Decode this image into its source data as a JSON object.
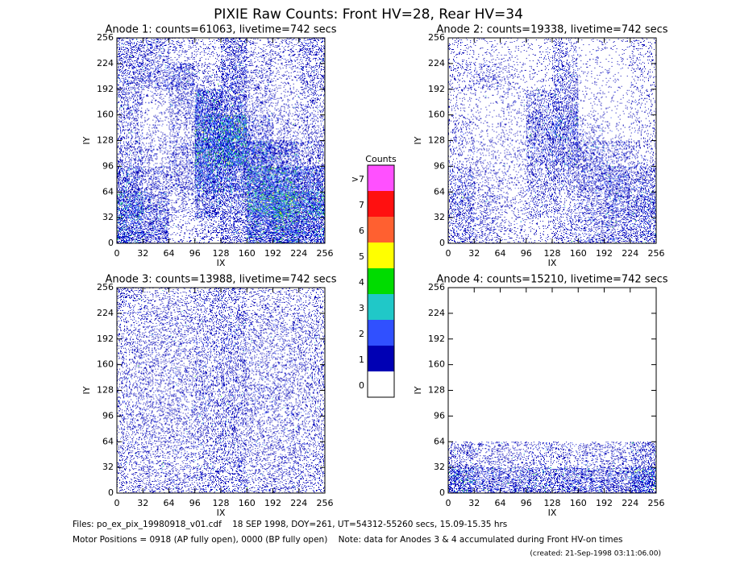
{
  "title": "PIXIE Raw Counts:  Front HV=28, Rear HV=34",
  "colorbar": {
    "title": "Counts",
    "labels": [
      "0",
      "1",
      "2",
      "3",
      "4",
      "5",
      "6",
      "7",
      ">7"
    ],
    "colors": [
      "#ffffff",
      "#0000b4",
      "#3050ff",
      "#20c8c8",
      "#00dc00",
      "#ffff00",
      "#ff6030",
      "#ff1010",
      "#ff50ff"
    ]
  },
  "footer": [
    "Files: po_ex_pix_19980918_v01.cdf    18 SEP 1998, DOY=261, UT=54312-55260 secs, 15.09-15.35 hrs",
    "Motor Positions = 0918 (AP fully open), 0000 (BP fully open)    Note: data for Anodes 3 & 4 accumulated during Front HV-on times",
    "(created: 21-Sep-1998 03:11:06.00)"
  ],
  "chart_data": [
    {
      "type": "heatmap",
      "title": "Anode 1: counts=61063, livetime=742 secs",
      "xlabel": "IX",
      "ylabel": "IY",
      "xlim": [
        0,
        256
      ],
      "ylim": [
        0,
        256
      ],
      "xticks": [
        0,
        32,
        64,
        96,
        128,
        160,
        192,
        224,
        256
      ],
      "yticks": [
        0,
        32,
        64,
        96,
        128,
        160,
        192,
        224,
        256
      ],
      "x_bins": [
        0,
        32,
        64,
        96,
        128,
        160,
        192,
        224,
        256
      ],
      "y_bins": [
        0,
        32,
        64,
        96,
        128,
        160,
        192,
        224,
        256
      ],
      "values": [
        [
          0.8,
          0.5,
          0.1,
          0.2,
          0.4,
          0.9,
          1.3,
          0.9
        ],
        [
          1.0,
          0.5,
          0.2,
          0.6,
          0.5,
          1.5,
          1.8,
          1.3
        ],
        [
          0.6,
          0.3,
          0.3,
          1.0,
          0.8,
          1.3,
          1.2,
          0.8
        ],
        [
          0.3,
          0.15,
          0.3,
          1.3,
          1.5,
          1.0,
          0.6,
          0.3
        ],
        [
          0.25,
          0.1,
          0.2,
          1.2,
          1.5,
          0.4,
          0.2,
          0.2
        ],
        [
          0.3,
          0.1,
          0.3,
          0.8,
          0.6,
          0.2,
          0.1,
          0.2
        ],
        [
          0.4,
          0.35,
          0.5,
          0.2,
          0.5,
          0.2,
          0.1,
          0.25
        ],
        [
          0.3,
          0.3,
          0.15,
          0.1,
          0.4,
          0.15,
          0.15,
          0.3
        ]
      ]
    },
    {
      "type": "heatmap",
      "title": "Anode 2: counts=19338, livetime=742 secs",
      "xlabel": "IX",
      "ylabel": "IY",
      "xlim": [
        0,
        256
      ],
      "ylim": [
        0,
        256
      ],
      "xticks": [
        0,
        32,
        64,
        96,
        128,
        160,
        192,
        224,
        256
      ],
      "yticks": [
        0,
        32,
        64,
        96,
        128,
        160,
        192,
        224,
        256
      ],
      "x_bins": [
        0,
        32,
        64,
        96,
        128,
        160,
        192,
        224,
        256
      ],
      "y_bins": [
        0,
        32,
        64,
        96,
        128,
        160,
        192,
        224,
        256
      ],
      "values": [
        [
          0.3,
          0.2,
          0.1,
          0.1,
          0.2,
          0.3,
          0.4,
          0.4
        ],
        [
          0.4,
          0.2,
          0.1,
          0.2,
          0.2,
          0.3,
          0.5,
          0.5
        ],
        [
          0.3,
          0.15,
          0.1,
          0.3,
          0.3,
          0.4,
          0.5,
          0.4
        ],
        [
          0.15,
          0.1,
          0.1,
          0.4,
          0.5,
          0.4,
          0.2,
          0.15
        ],
        [
          0.15,
          0.05,
          0.1,
          0.5,
          0.6,
          0.15,
          0.05,
          0.1
        ],
        [
          0.1,
          0.05,
          0.1,
          0.3,
          0.4,
          0.05,
          0.05,
          0.1
        ],
        [
          0.15,
          0.2,
          0.1,
          0.05,
          0.3,
          0.05,
          0.05,
          0.1
        ],
        [
          0.1,
          0.05,
          0.05,
          0.05,
          0.2,
          0.05,
          0.05,
          0.1
        ]
      ]
    },
    {
      "type": "heatmap",
      "title": "Anode 3: counts=13988, livetime=742 secs",
      "xlabel": "IX",
      "ylabel": "IY",
      "xlim": [
        0,
        256
      ],
      "ylim": [
        0,
        256
      ],
      "xticks": [
        0,
        32,
        64,
        96,
        128,
        160,
        192,
        224,
        256
      ],
      "yticks": [
        0,
        32,
        64,
        96,
        128,
        160,
        192,
        224,
        256
      ],
      "x_bins": [
        0,
        32,
        64,
        96,
        128,
        160,
        192,
        224,
        256
      ],
      "y_bins": [
        0,
        32,
        64,
        96,
        128,
        160,
        192,
        224,
        256
      ],
      "values": [
        [
          0.2,
          0.2,
          0.2,
          0.25,
          0.3,
          0.2,
          0.2,
          0.2
        ],
        [
          0.2,
          0.2,
          0.2,
          0.25,
          0.3,
          0.2,
          0.2,
          0.2
        ],
        [
          0.2,
          0.2,
          0.2,
          0.25,
          0.3,
          0.2,
          0.2,
          0.2
        ],
        [
          0.2,
          0.2,
          0.2,
          0.25,
          0.3,
          0.2,
          0.2,
          0.2
        ],
        [
          0.2,
          0.2,
          0.2,
          0.25,
          0.3,
          0.2,
          0.2,
          0.2
        ],
        [
          0.2,
          0.2,
          0.2,
          0.25,
          0.3,
          0.2,
          0.2,
          0.2
        ],
        [
          0.2,
          0.2,
          0.2,
          0.25,
          0.3,
          0.2,
          0.2,
          0.2
        ],
        [
          0.2,
          0.15,
          0.15,
          0.2,
          0.25,
          0.15,
          0.15,
          0.15
        ]
      ]
    },
    {
      "type": "heatmap",
      "title": "Anode 4: counts=15210, livetime=742 secs",
      "xlabel": "IX",
      "ylabel": "IY",
      "xlim": [
        0,
        256
      ],
      "ylim": [
        0,
        256
      ],
      "xticks": [
        0,
        32,
        64,
        96,
        128,
        160,
        192,
        224,
        256
      ],
      "yticks": [
        0,
        32,
        64,
        96,
        128,
        160,
        192,
        224,
        256
      ],
      "x_bins": [
        0,
        32,
        64,
        96,
        128,
        160,
        192,
        224,
        256
      ],
      "y_bins": [
        0,
        32,
        64,
        96,
        128,
        160,
        192,
        224,
        256
      ],
      "values": [
        [
          0.8,
          0.5,
          0.5,
          0.5,
          0.5,
          0.5,
          0.5,
          0.9
        ],
        [
          0.3,
          0.2,
          0.2,
          0.2,
          0.2,
          0.2,
          0.2,
          0.4
        ],
        [
          0,
          0,
          0,
          0,
          0,
          0,
          0,
          0
        ],
        [
          0,
          0,
          0,
          0,
          0,
          0,
          0,
          0
        ],
        [
          0,
          0,
          0,
          0,
          0,
          0,
          0,
          0
        ],
        [
          0,
          0,
          0,
          0,
          0,
          0,
          0,
          0
        ],
        [
          0,
          0,
          0,
          0,
          0,
          0,
          0,
          0
        ],
        [
          0,
          0,
          0,
          0,
          0,
          0,
          0,
          0
        ]
      ]
    }
  ]
}
